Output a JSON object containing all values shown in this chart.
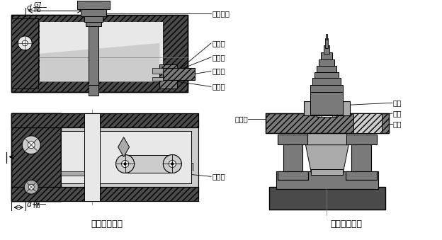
{
  "title_left": "铰钉式钓模板",
  "title_right": "可卸式钓模板",
  "labels_left": [
    "菱形螺母",
    "钓模板",
    "支承钉",
    "铰钉座",
    "夾具体",
    "铰钉销"
  ],
  "labels_right": [
    "钓模板",
    "压板",
    "钓套",
    "工件"
  ],
  "bg_color": "#ffffff",
  "c1": "#4a4a4a",
  "c2": "#7a7a7a",
  "c3": "#aaaaaa",
  "c4": "#cccccc",
  "c5": "#e8e8e8",
  "lc": "#000000",
  "fs": 7.5,
  "ft": 9.0,
  "tc": "#000000"
}
